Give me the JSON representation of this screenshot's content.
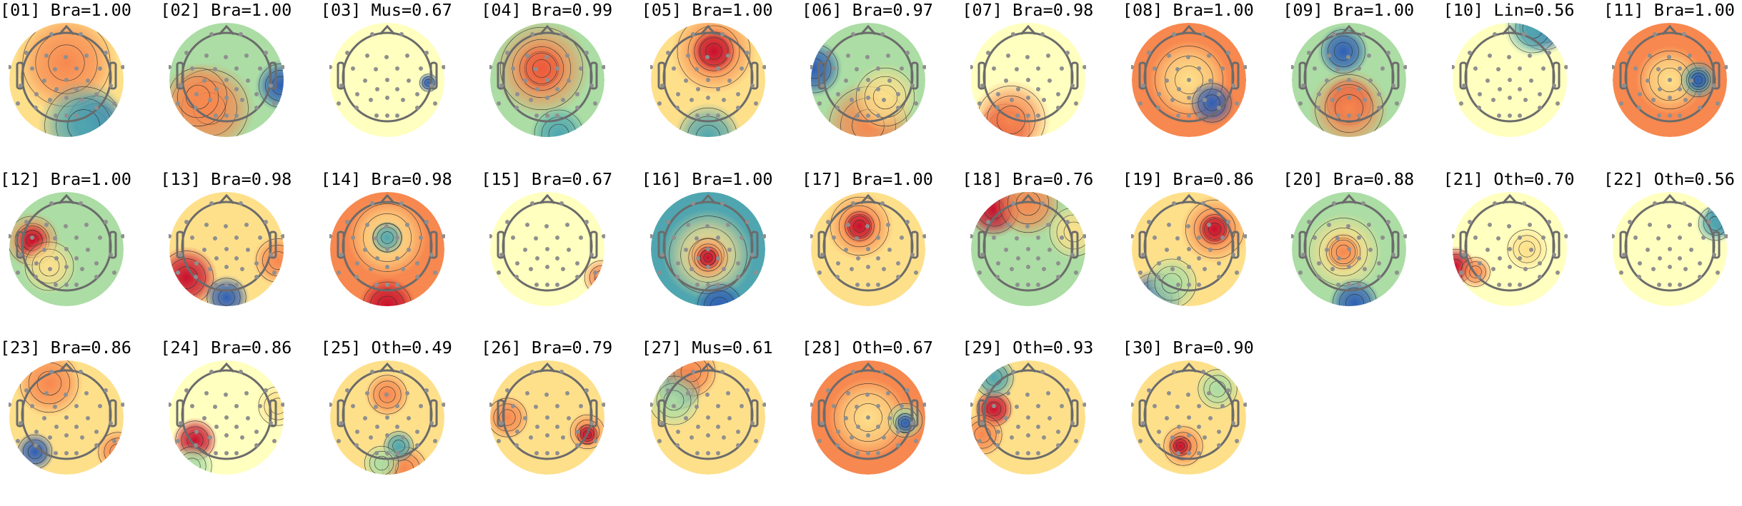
{
  "chart_data": {
    "type": "heatmap",
    "description_kind": "scalp topographic maps",
    "grid": false,
    "colormap": [
      "#9e0142",
      "#d53e4f",
      "#f46d43",
      "#fdae61",
      "#fee08b",
      "#ffffbf",
      "#e6f598",
      "#abdda4",
      "#66c2a5",
      "#3288bd",
      "#5e4fa2"
    ],
    "components": [
      {
        "label": "[01] Bra=1.00",
        "index": "01",
        "class": "Bra",
        "score": 1.0
      },
      {
        "label": "[02] Bra=1.00",
        "index": "02",
        "class": "Bra",
        "score": 1.0
      },
      {
        "label": "[03] Mus=0.67",
        "index": "03",
        "class": "Mus",
        "score": 0.67
      },
      {
        "label": "[04] Bra=0.99",
        "index": "04",
        "class": "Bra",
        "score": 0.99
      },
      {
        "label": "[05] Bra=1.00",
        "index": "05",
        "class": "Bra",
        "score": 1.0
      },
      {
        "label": "[06] Bra=0.97",
        "index": "06",
        "class": "Bra",
        "score": 0.97
      },
      {
        "label": "[07] Bra=0.98",
        "index": "07",
        "class": "Bra",
        "score": 0.98
      },
      {
        "label": "[08] Bra=1.00",
        "index": "08",
        "class": "Bra",
        "score": 1.0
      },
      {
        "label": "[09] Bra=1.00",
        "index": "09",
        "class": "Bra",
        "score": 1.0
      },
      {
        "label": "[10] Lin=0.56",
        "index": "10",
        "class": "Lin",
        "score": 0.56
      },
      {
        "label": "[11] Bra=1.00",
        "index": "11",
        "class": "Bra",
        "score": 1.0
      },
      {
        "label": "[12] Bra=1.00",
        "index": "12",
        "class": "Bra",
        "score": 1.0
      },
      {
        "label": "[13] Bra=0.98",
        "index": "13",
        "class": "Bra",
        "score": 0.98
      },
      {
        "label": "[14] Bra=0.98",
        "index": "14",
        "class": "Bra",
        "score": 0.98
      },
      {
        "label": "[15] Bra=0.67",
        "index": "15",
        "class": "Bra",
        "score": 0.67
      },
      {
        "label": "[16] Bra=1.00",
        "index": "16",
        "class": "Bra",
        "score": 1.0
      },
      {
        "label": "[17] Bra=1.00",
        "index": "17",
        "class": "Bra",
        "score": 1.0
      },
      {
        "label": "[18] Bra=0.76",
        "index": "18",
        "class": "Bra",
        "score": 0.76
      },
      {
        "label": "[19] Bra=0.86",
        "index": "19",
        "class": "Bra",
        "score": 0.86
      },
      {
        "label": "[20] Bra=0.88",
        "index": "20",
        "class": "Bra",
        "score": 0.88
      },
      {
        "label": "[21] Oth=0.70",
        "index": "21",
        "class": "Oth",
        "score": 0.7
      },
      {
        "label": "[22] Oth=0.56",
        "index": "22",
        "class": "Oth",
        "score": 0.56
      },
      {
        "label": "[23] Bra=0.86",
        "index": "23",
        "class": "Bra",
        "score": 0.86
      },
      {
        "label": "[24] Bra=0.86",
        "index": "24",
        "class": "Bra",
        "score": 0.86
      },
      {
        "label": "[25] Oth=0.49",
        "index": "25",
        "class": "Oth",
        "score": 0.49
      },
      {
        "label": "[26] Bra=0.79",
        "index": "26",
        "class": "Bra",
        "score": 0.79
      },
      {
        "label": "[27] Mus=0.61",
        "index": "27",
        "class": "Mus",
        "score": 0.61
      },
      {
        "label": "[28] Oth=0.67",
        "index": "28",
        "class": "Oth",
        "score": 0.67
      },
      {
        "label": "[29] Oth=0.93",
        "index": "29",
        "class": "Oth",
        "score": 0.93
      },
      {
        "label": "[30] Bra=0.90",
        "index": "30",
        "class": "Bra",
        "score": 0.9
      }
    ]
  }
}
